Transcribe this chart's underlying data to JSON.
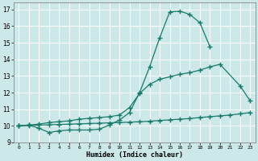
{
  "title": "",
  "xlabel": "Humidex (Indice chaleur)",
  "bg_color": "#cce8e8",
  "grid_color": "#ffffff",
  "line_color": "#1a7a6a",
  "xlim": [
    -0.5,
    23.5
  ],
  "ylim": [
    9,
    17.4
  ],
  "yticks": [
    9,
    10,
    11,
    12,
    13,
    14,
    15,
    16,
    17
  ],
  "xticks": [
    0,
    1,
    2,
    3,
    4,
    5,
    6,
    7,
    8,
    9,
    10,
    11,
    12,
    13,
    14,
    15,
    16,
    17,
    18,
    19,
    20,
    21,
    22,
    23
  ],
  "line1_x": [
    0,
    1,
    2,
    3,
    4,
    5,
    6,
    7,
    8,
    9,
    10,
    11,
    12,
    13,
    14,
    15,
    16,
    17,
    18,
    19
  ],
  "line1_y": [
    10.0,
    10.05,
    9.85,
    9.6,
    9.7,
    9.75,
    9.75,
    9.75,
    9.8,
    10.05,
    10.35,
    10.8,
    12.0,
    13.55,
    15.3,
    16.85,
    16.9,
    16.7,
    16.2,
    14.75
  ],
  "line2_x": [
    0,
    1,
    2,
    3,
    4,
    5,
    6,
    7,
    8,
    9,
    10,
    11,
    12,
    13,
    14,
    15,
    16,
    17,
    18,
    19,
    20,
    22,
    23
  ],
  "line2_y": [
    10.0,
    10.05,
    10.1,
    10.2,
    10.25,
    10.3,
    10.4,
    10.45,
    10.5,
    10.55,
    10.65,
    11.1,
    11.95,
    12.5,
    12.8,
    12.95,
    13.1,
    13.2,
    13.35,
    13.55,
    13.7,
    12.4,
    11.5
  ],
  "line3_x": [
    0,
    1,
    2,
    3,
    4,
    5,
    6,
    7,
    8,
    9,
    10,
    11,
    12,
    13,
    14,
    15,
    16,
    17,
    18,
    19,
    20,
    21,
    22,
    23
  ],
  "line3_y": [
    10.0,
    10.02,
    10.04,
    10.06,
    10.08,
    10.1,
    10.12,
    10.14,
    10.16,
    10.18,
    10.2,
    10.22,
    10.25,
    10.28,
    10.32,
    10.36,
    10.4,
    10.44,
    10.5,
    10.55,
    10.6,
    10.65,
    10.72,
    10.8
  ]
}
